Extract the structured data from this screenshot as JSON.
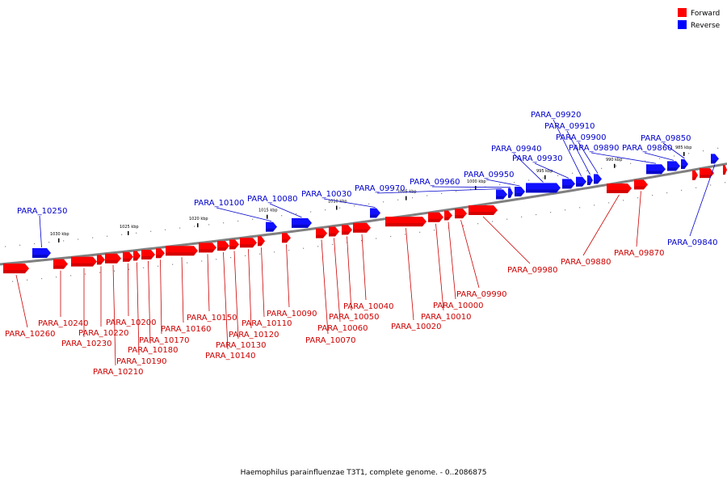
{
  "caption": "Haemophilus parainfluenzae T3T1, complete genome. - 0..2086875",
  "legend": [
    {
      "label": "Forward",
      "color": "#ff0000"
    },
    {
      "label": "Reverse",
      "color": "#0000ff"
    }
  ],
  "colors": {
    "forward": "#ff0000",
    "forward_dark": "#b30000",
    "reverse": "#1010ff",
    "reverse_dark": "#0000a0",
    "forward_label": "#cc0000",
    "reverse_label": "#0000cc",
    "backbone": "#808080"
  },
  "kbp_ticks": [
    {
      "label": "1030 kbp",
      "kbp": 1030
    },
    {
      "label": "1025 kbp",
      "kbp": 1025
    },
    {
      "label": "1020 kbp",
      "kbp": 1020
    },
    {
      "label": "1015 kbp",
      "kbp": 1015
    },
    {
      "label": "1010 kbp",
      "kbp": 1010
    },
    {
      "label": "1005 kbp",
      "kbp": 1005
    },
    {
      "label": "1000 kbp",
      "kbp": 1000
    },
    {
      "label": "995 kbp",
      "kbp": 995
    },
    {
      "label": "990 kbp",
      "kbp": 990
    },
    {
      "label": "985 kbp",
      "kbp": 985
    }
  ],
  "forward_genes": [
    {
      "name": "PARA_10260"
    },
    {
      "name": "PARA_10240"
    },
    {
      "name": "PARA_10230"
    },
    {
      "name": "PARA_10220"
    },
    {
      "name": "PARA_10210"
    },
    {
      "name": "PARA_10200"
    },
    {
      "name": "PARA_10190"
    },
    {
      "name": "PARA_10180"
    },
    {
      "name": "PARA_10170"
    },
    {
      "name": "PARA_10160"
    },
    {
      "name": "PARA_10150"
    },
    {
      "name": "PARA_10140"
    },
    {
      "name": "PARA_10130"
    },
    {
      "name": "PARA_10120"
    },
    {
      "name": "PARA_10110"
    },
    {
      "name": "PARA_10090"
    },
    {
      "name": "PARA_10070"
    },
    {
      "name": "PARA_10060"
    },
    {
      "name": "PARA_10050"
    },
    {
      "name": "PARA_10040"
    },
    {
      "name": "PARA_10020"
    },
    {
      "name": "PARA_10010"
    },
    {
      "name": "PARA_10000"
    },
    {
      "name": "PARA_09990"
    },
    {
      "name": "PARA_09980"
    },
    {
      "name": "PARA_09880"
    },
    {
      "name": "PARA_09870"
    }
  ],
  "reverse_genes": [
    {
      "name": "PARA_10250"
    },
    {
      "name": "PARA_10100"
    },
    {
      "name": "PARA_10080"
    },
    {
      "name": "PARA_10030"
    },
    {
      "name": "PARA_09970"
    },
    {
      "name": "PARA_09960"
    },
    {
      "name": "PARA_09950"
    },
    {
      "name": "PARA_09940"
    },
    {
      "name": "PARA_09930"
    },
    {
      "name": "PARA_09920"
    },
    {
      "name": "PARA_09910"
    },
    {
      "name": "PARA_09900"
    },
    {
      "name": "PARA_09890"
    },
    {
      "name": "PARA_09860"
    },
    {
      "name": "PARA_09850"
    },
    {
      "name": "PARA_09840"
    }
  ]
}
